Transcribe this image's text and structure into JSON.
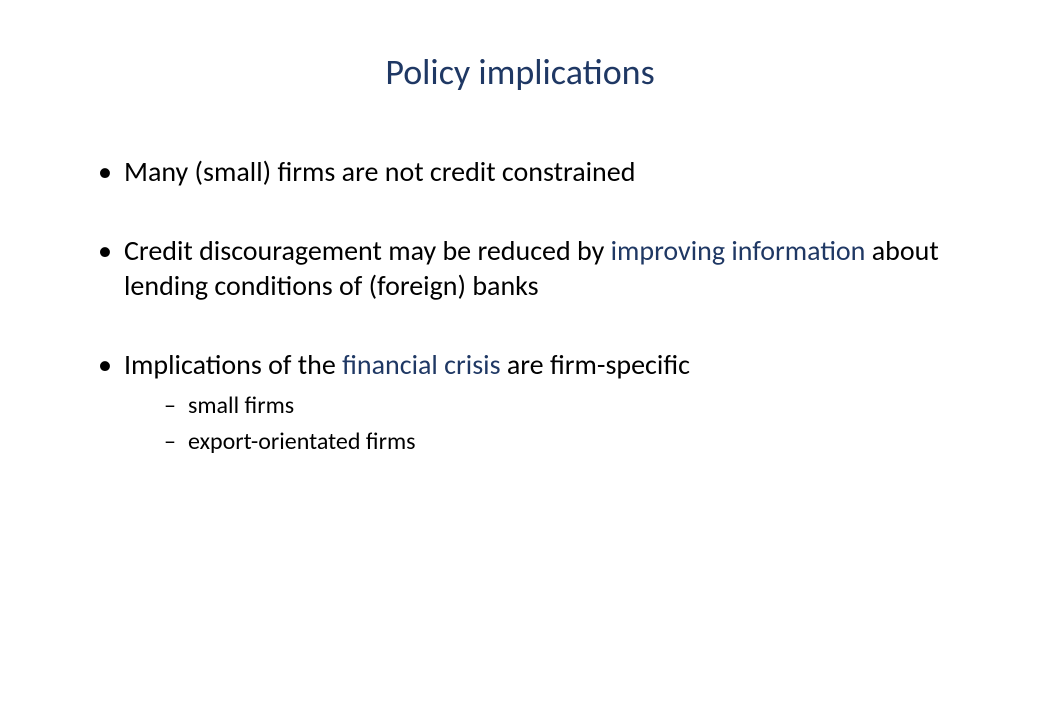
{
  "colors": {
    "background": "#ffffff",
    "body_text": "#000000",
    "accent": "#1f3864"
  },
  "typography": {
    "title_fontsize": 36,
    "bullet_fontsize": 28,
    "sub_fontsize": 24,
    "font_family": "Calibri"
  },
  "slide": {
    "title": "Policy implications",
    "bullets": [
      {
        "text_plain": "Many (small) firms are not credit constrained",
        "segments": [
          {
            "t": "Many (small) firms are not credit constrained",
            "accent": false
          }
        ],
        "sub": []
      },
      {
        "text_plain": "Credit discouragement may be reduced by improving information about lending conditions of (foreign) banks",
        "segments": [
          {
            "t": "Credit discouragement may be reduced by ",
            "accent": false
          },
          {
            "t": "improving information",
            "accent": true
          },
          {
            "t": " about lending conditions of (foreign) banks",
            "accent": false
          }
        ],
        "sub": []
      },
      {
        "text_plain": "Implications of the financial crisis are firm-specific",
        "segments": [
          {
            "t": "Implications of the ",
            "accent": false
          },
          {
            "t": "financial crisis",
            "accent": true
          },
          {
            "t": " are firm-specific",
            "accent": false
          }
        ],
        "sub": [
          "small firms",
          "export-orientated firms"
        ]
      }
    ]
  }
}
